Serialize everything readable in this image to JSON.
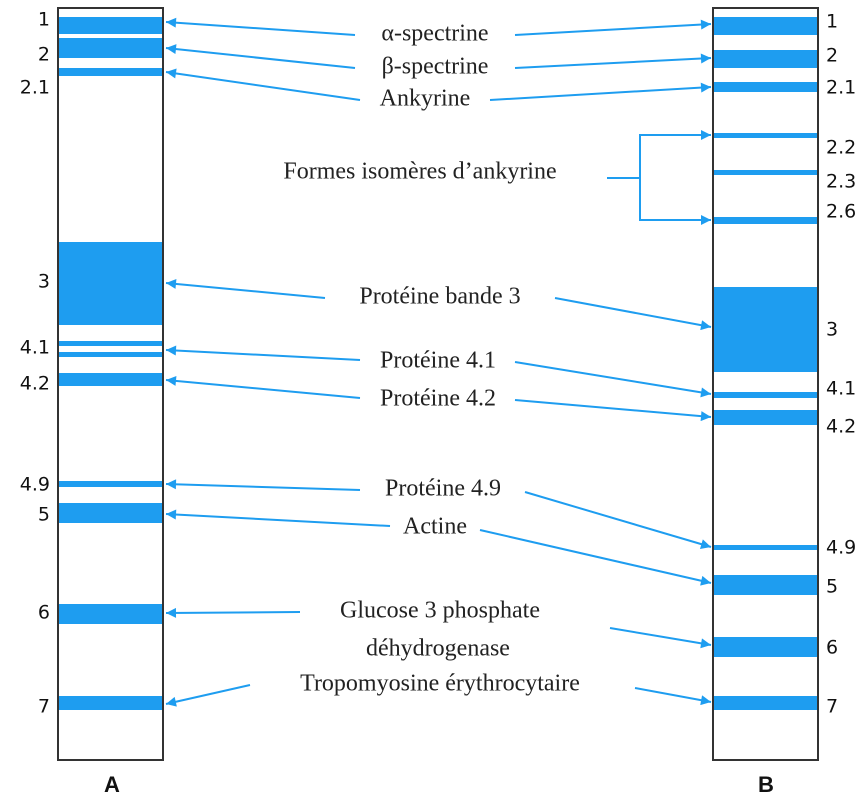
{
  "lanes": [
    {
      "name": "A",
      "bands": [
        "1",
        "2",
        "2.1",
        "3",
        "4.1",
        "4.2",
        "4.9",
        "5",
        "6",
        "7"
      ]
    },
    {
      "name": "B",
      "bands": [
        "1",
        "2",
        "2.1",
        "2.2",
        "2.3",
        "2.6",
        "3",
        "4.1",
        "4.2",
        "4.9",
        "5",
        "6",
        "7"
      ]
    }
  ],
  "proteins": [
    "α-spectrine",
    "β-spectrine",
    "Ankyrine",
    "Formes isomères d’ankyrine",
    "Protéine bande 3",
    "Protéine 4.1",
    "Protéine 4.2",
    "Protéine 4.9",
    "Actine",
    "Glucose 3 phosphate",
    "déhydrogenase",
    "Tropomyosine érythrocytaire"
  ]
}
